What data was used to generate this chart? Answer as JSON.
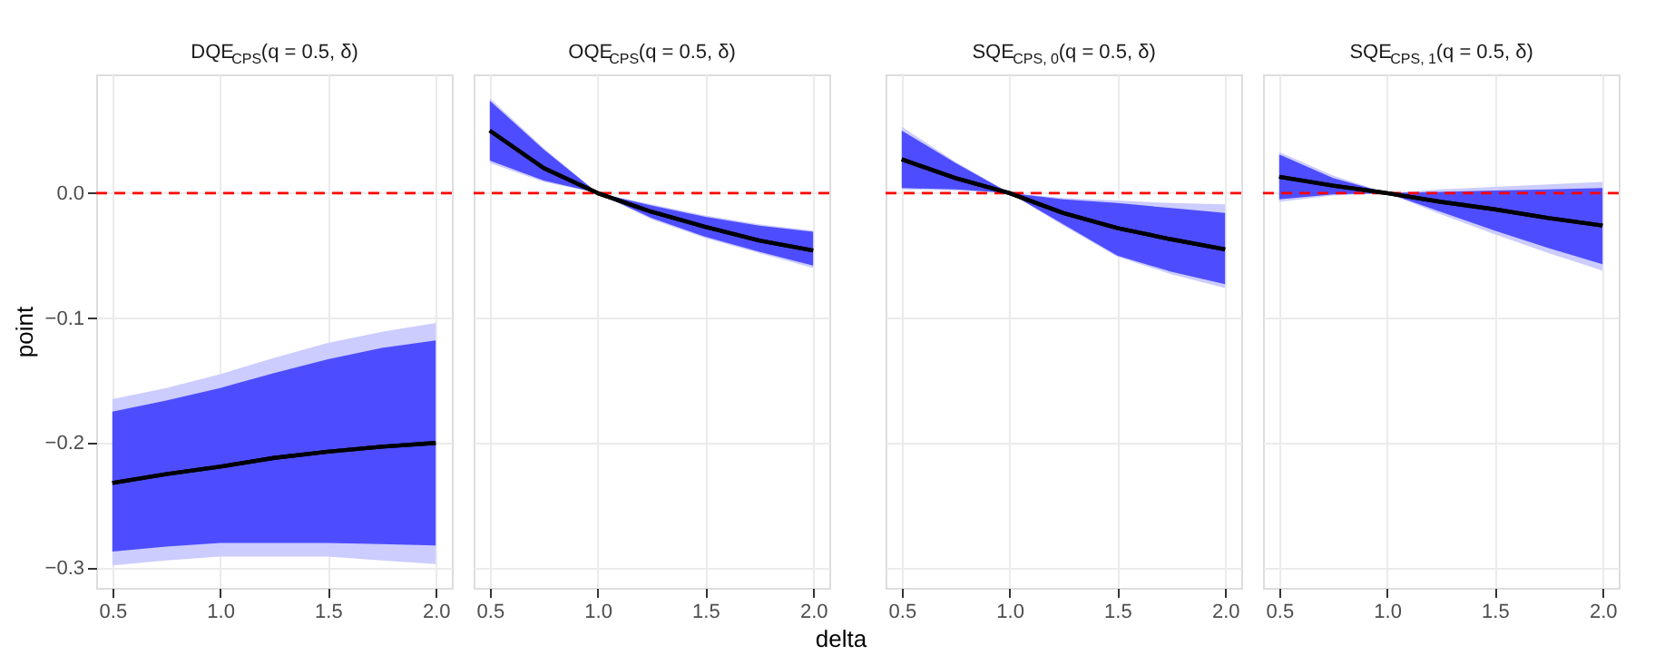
{
  "chart_data": [
    {
      "type": "line",
      "title": "DQE$_{CPS}$(q = 0.5, δ)",
      "ylabel": "point",
      "x": [
        0.5,
        0.75,
        1.0,
        1.25,
        1.5,
        1.75,
        2.0
      ],
      "xlim": [
        0.425,
        2.075
      ],
      "xticks": [
        {
          "value": 0.5,
          "label": "0.5"
        },
        {
          "value": 1.0,
          "label": "1.0"
        },
        {
          "value": 1.5,
          "label": "1.5"
        },
        {
          "value": 2.0,
          "label": "2.0"
        }
      ],
      "ylim": [
        -0.316,
        0.095
      ],
      "yticks": [
        {
          "value": -0.3,
          "label": "−0.3"
        },
        {
          "value": -0.2,
          "label": "−0.2"
        },
        {
          "value": -0.1,
          "label": "−0.1"
        },
        {
          "value": 0.0,
          "label": "0.0"
        }
      ],
      "grid": true,
      "ref_lines": [
        {
          "axis": "y",
          "value": 0,
          "color": "#ff0000",
          "line_style": "dashed"
        }
      ],
      "series": [
        {
          "color": "#000000",
          "values": [
            -0.232,
            -0.225,
            -0.219,
            -0.212,
            -0.207,
            -0.203,
            -0.2
          ],
          "lower": [
            -0.298,
            -0.294,
            -0.291,
            -0.291,
            -0.291,
            -0.294,
            -0.297
          ],
          "upper": [
            -0.165,
            -0.156,
            -0.145,
            -0.132,
            -0.12,
            -0.111,
            -0.104
          ]
        },
        {
          "color": "#000000",
          "values": [
            -0.232,
            -0.225,
            -0.219,
            -0.212,
            -0.207,
            -0.203,
            -0.2
          ],
          "lower": [
            -0.287,
            -0.283,
            -0.28,
            -0.28,
            -0.28,
            -0.281,
            -0.282
          ],
          "upper": [
            -0.175,
            -0.166,
            -0.156,
            -0.144,
            -0.133,
            -0.124,
            -0.118
          ]
        }
      ]
    },
    {
      "type": "line",
      "title": "OQE$_{CPS}$(q = 0.5, δ)",
      "xlabel": "delta",
      "tick_labels": "x",
      "x": [
        0.5,
        0.75,
        1.0,
        1.25,
        1.5,
        1.75,
        2.0
      ],
      "xlim": [
        0.425,
        2.075
      ],
      "xticks": [
        {
          "value": 0.5,
          "label": "0.5"
        },
        {
          "value": 1.0,
          "label": "1.0"
        },
        {
          "value": 1.5,
          "label": "1.5"
        },
        {
          "value": 2.0,
          "label": "2.0"
        }
      ],
      "ylim": [
        -0.316,
        0.095
      ],
      "yticks": [
        -0.3,
        -0.2,
        -0.1,
        0
      ],
      "grid": true,
      "ref_lines": [
        {
          "axis": "y",
          "value": 0,
          "color": "#ff0000",
          "line_style": "dashed"
        }
      ],
      "series": [
        {
          "color": "#000000",
          "values": [
            0.05,
            0.02,
            0.0,
            -0.015,
            -0.027,
            -0.038,
            -0.046
          ],
          "lower": [
            0.024,
            0.009,
            0.0,
            -0.021,
            -0.036,
            -0.048,
            -0.06
          ],
          "upper": [
            0.076,
            0.036,
            0.0,
            -0.009,
            -0.018,
            -0.025,
            -0.03
          ]
        },
        {
          "color": "#000000",
          "values": [
            0.05,
            0.02,
            0.0,
            -0.015,
            -0.027,
            -0.038,
            -0.046
          ],
          "lower": [
            0.026,
            0.01,
            0.0,
            -0.02,
            -0.035,
            -0.047,
            -0.058
          ],
          "upper": [
            0.074,
            0.035,
            0.0,
            -0.01,
            -0.019,
            -0.026,
            -0.031
          ]
        }
      ]
    },
    {
      "type": "line",
      "title": "SQE$_{CPS, 0}$(q = 0.5, δ)",
      "tick_labels": "x",
      "x": [
        0.5,
        0.75,
        1.0,
        1.25,
        1.5,
        1.75,
        2.0
      ],
      "xlim": [
        0.425,
        2.075
      ],
      "xticks": [
        {
          "value": 0.5,
          "label": "0.5"
        },
        {
          "value": 1.0,
          "label": "1.0"
        },
        {
          "value": 1.5,
          "label": "1.5"
        },
        {
          "value": 2.0,
          "label": "2.0"
        }
      ],
      "ylim": [
        -0.316,
        0.095
      ],
      "yticks": [
        -0.3,
        -0.2,
        -0.1,
        0
      ],
      "grid": true,
      "ref_lines": [
        {
          "axis": "y",
          "value": 0,
          "color": "#ff0000",
          "line_style": "dashed"
        }
      ],
      "series": [
        {
          "color": "#000000",
          "values": [
            0.027,
            0.012,
            0.0,
            -0.016,
            -0.028,
            -0.037,
            -0.045
          ],
          "lower": [
            0.003,
            0.002,
            0.0,
            -0.026,
            -0.051,
            -0.065,
            -0.076
          ],
          "upper": [
            0.053,
            0.025,
            0.0,
            -0.004,
            -0.006,
            -0.008,
            -0.009
          ]
        },
        {
          "color": "#000000",
          "values": [
            0.027,
            0.012,
            0.0,
            -0.016,
            -0.028,
            -0.037,
            -0.045
          ],
          "lower": [
            0.004,
            0.003,
            0.0,
            -0.025,
            -0.05,
            -0.063,
            -0.073
          ],
          "upper": [
            0.05,
            0.024,
            0.0,
            -0.005,
            -0.008,
            -0.012,
            -0.016
          ]
        }
      ]
    },
    {
      "type": "line",
      "title": "SQE$_{CPS, 1}$(q = 0.5, δ)",
      "tick_labels": "x",
      "x": [
        0.5,
        0.75,
        1.0,
        1.25,
        1.5,
        1.75,
        2.0
      ],
      "xlim": [
        0.425,
        2.075
      ],
      "xticks": [
        {
          "value": 0.5,
          "label": "0.5"
        },
        {
          "value": 1.0,
          "label": "1.0"
        },
        {
          "value": 1.5,
          "label": "1.5"
        },
        {
          "value": 2.0,
          "label": "2.0"
        }
      ],
      "ylim": [
        -0.316,
        0.095
      ],
      "yticks": [
        -0.3,
        -0.2,
        -0.1,
        0
      ],
      "grid": true,
      "ref_lines": [
        {
          "axis": "y",
          "value": 0,
          "color": "#ff0000",
          "line_style": "dashed"
        }
      ],
      "series": [
        {
          "color": "#000000",
          "values": [
            0.013,
            0.006,
            0.0,
            -0.007,
            -0.013,
            -0.02,
            -0.026
          ],
          "lower": [
            -0.007,
            -0.002,
            0.0,
            -0.017,
            -0.033,
            -0.048,
            -0.062
          ],
          "upper": [
            0.033,
            0.014,
            0.0,
            0.003,
            0.005,
            0.007,
            0.009
          ]
        },
        {
          "color": "#000000",
          "values": [
            0.013,
            0.006,
            0.0,
            -0.007,
            -0.013,
            -0.02,
            -0.026
          ],
          "lower": [
            -0.005,
            -0.001,
            0.0,
            -0.015,
            -0.03,
            -0.044,
            -0.057
          ],
          "upper": [
            0.031,
            0.012,
            0.0,
            0.001,
            0.002,
            0.003,
            0.004
          ]
        }
      ]
    }
  ]
}
